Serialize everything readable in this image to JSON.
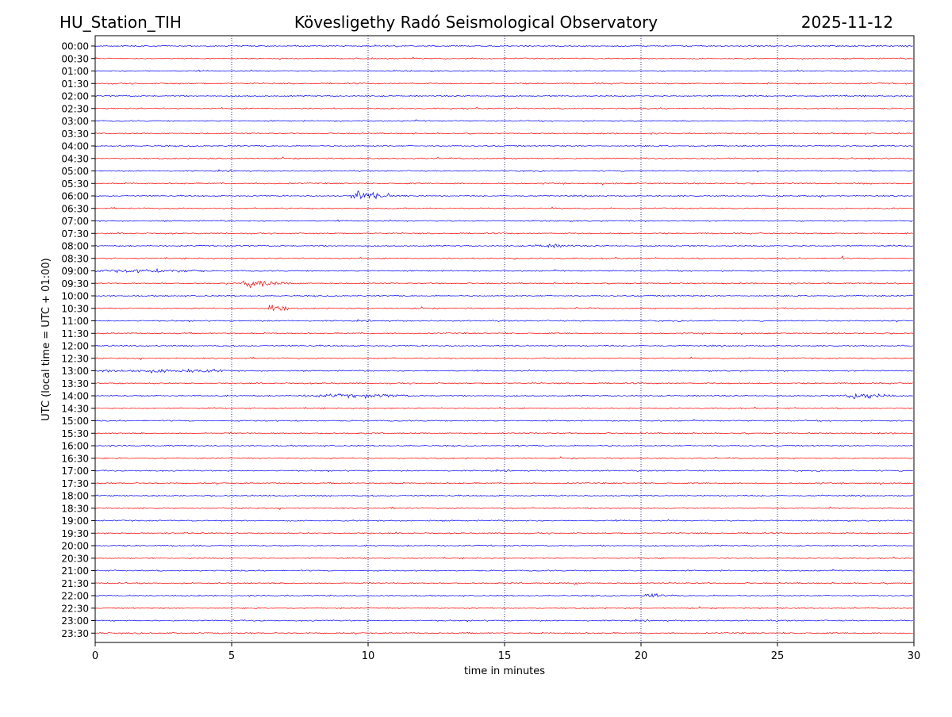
{
  "header": {
    "station": "HU_Station_TIH",
    "observatory": "Kövesligethy Radó Seismological Observatory",
    "date": "2025-11-12"
  },
  "colors": {
    "trace_a": "#0000ff",
    "trace_b": "#ff0000",
    "gridline": "#000080",
    "axes": "#000000"
  },
  "chart_data": {
    "type": "line",
    "title": "Kövesligethy Radó Seismological Observatory",
    "xlabel": "time in minutes",
    "ylabel": "UTC (local time = UTC + 01:00)",
    "xlim": [
      0,
      30
    ],
    "xticks": [
      "0",
      "5",
      "10",
      "15",
      "20",
      "25",
      "30"
    ],
    "grid": "vertical dotted at 5-minute intervals",
    "row_labels": [
      "00:00",
      "00:30",
      "01:00",
      "01:30",
      "02:00",
      "02:30",
      "03:00",
      "03:30",
      "04:00",
      "04:30",
      "05:00",
      "05:30",
      "06:00",
      "06:30",
      "07:00",
      "07:30",
      "08:00",
      "08:30",
      "09:00",
      "09:30",
      "10:00",
      "10:30",
      "11:00",
      "11:30",
      "12:00",
      "12:30",
      "13:00",
      "13:30",
      "14:00",
      "14:30",
      "15:00",
      "15:30",
      "16:00",
      "16:30",
      "17:00",
      "17:30",
      "18:00",
      "18:30",
      "19:00",
      "19:30",
      "20:00",
      "20:30",
      "21:00",
      "21:30",
      "22:00",
      "22:30",
      "23:00",
      "23:30"
    ],
    "series_color_pattern": "alternating blue (on the hour) / red (half hour)",
    "events": [
      {
        "row": "06:00",
        "start_min": 9.2,
        "end_min": 12.8,
        "amplitude": 11,
        "type": "quake"
      },
      {
        "row": "09:30",
        "start_min": 5.3,
        "end_min": 8.0,
        "amplitude": 13,
        "type": "quake"
      },
      {
        "row": "10:30",
        "start_min": 6.3,
        "end_min": 7.6,
        "amplitude": 17,
        "type": "quake"
      },
      {
        "row": "14:00",
        "start_min": 27.4,
        "end_min": 30.0,
        "amplitude": 12,
        "type": "quake"
      },
      {
        "row": "22:00",
        "start_min": 20.0,
        "end_min": 22.0,
        "amplitude": 7,
        "type": "quake"
      },
      {
        "row": "09:00",
        "start_min": 0.0,
        "end_min": 4.0,
        "amplitude": 4,
        "type": "noise"
      },
      {
        "row": "13:00",
        "start_min": 0.0,
        "end_min": 5.0,
        "amplitude": 4,
        "type": "noise"
      },
      {
        "row": "14:00",
        "start_min": 7.5,
        "end_min": 11.5,
        "amplitude": 4,
        "type": "noise"
      },
      {
        "row": "08:00",
        "start_min": 16.0,
        "end_min": 17.5,
        "amplitude": 4,
        "type": "noise"
      },
      {
        "row": "21:30",
        "start_min": 16.0,
        "end_min": 16.2,
        "amplitude": 5,
        "type": "spike"
      },
      {
        "row": "21:30",
        "start_min": 17.5,
        "end_min": 17.7,
        "amplitude": 7,
        "type": "spike"
      },
      {
        "row": "08:30",
        "start_min": 27.3,
        "end_min": 27.5,
        "amplitude": 5,
        "type": "spike"
      },
      {
        "row": "08:30",
        "start_min": 15.2,
        "end_min": 15.5,
        "amplitude": 4,
        "type": "spike"
      },
      {
        "row": "16:00",
        "start_min": 18.7,
        "end_min": 18.9,
        "amplitude": 5,
        "type": "spike"
      }
    ]
  }
}
